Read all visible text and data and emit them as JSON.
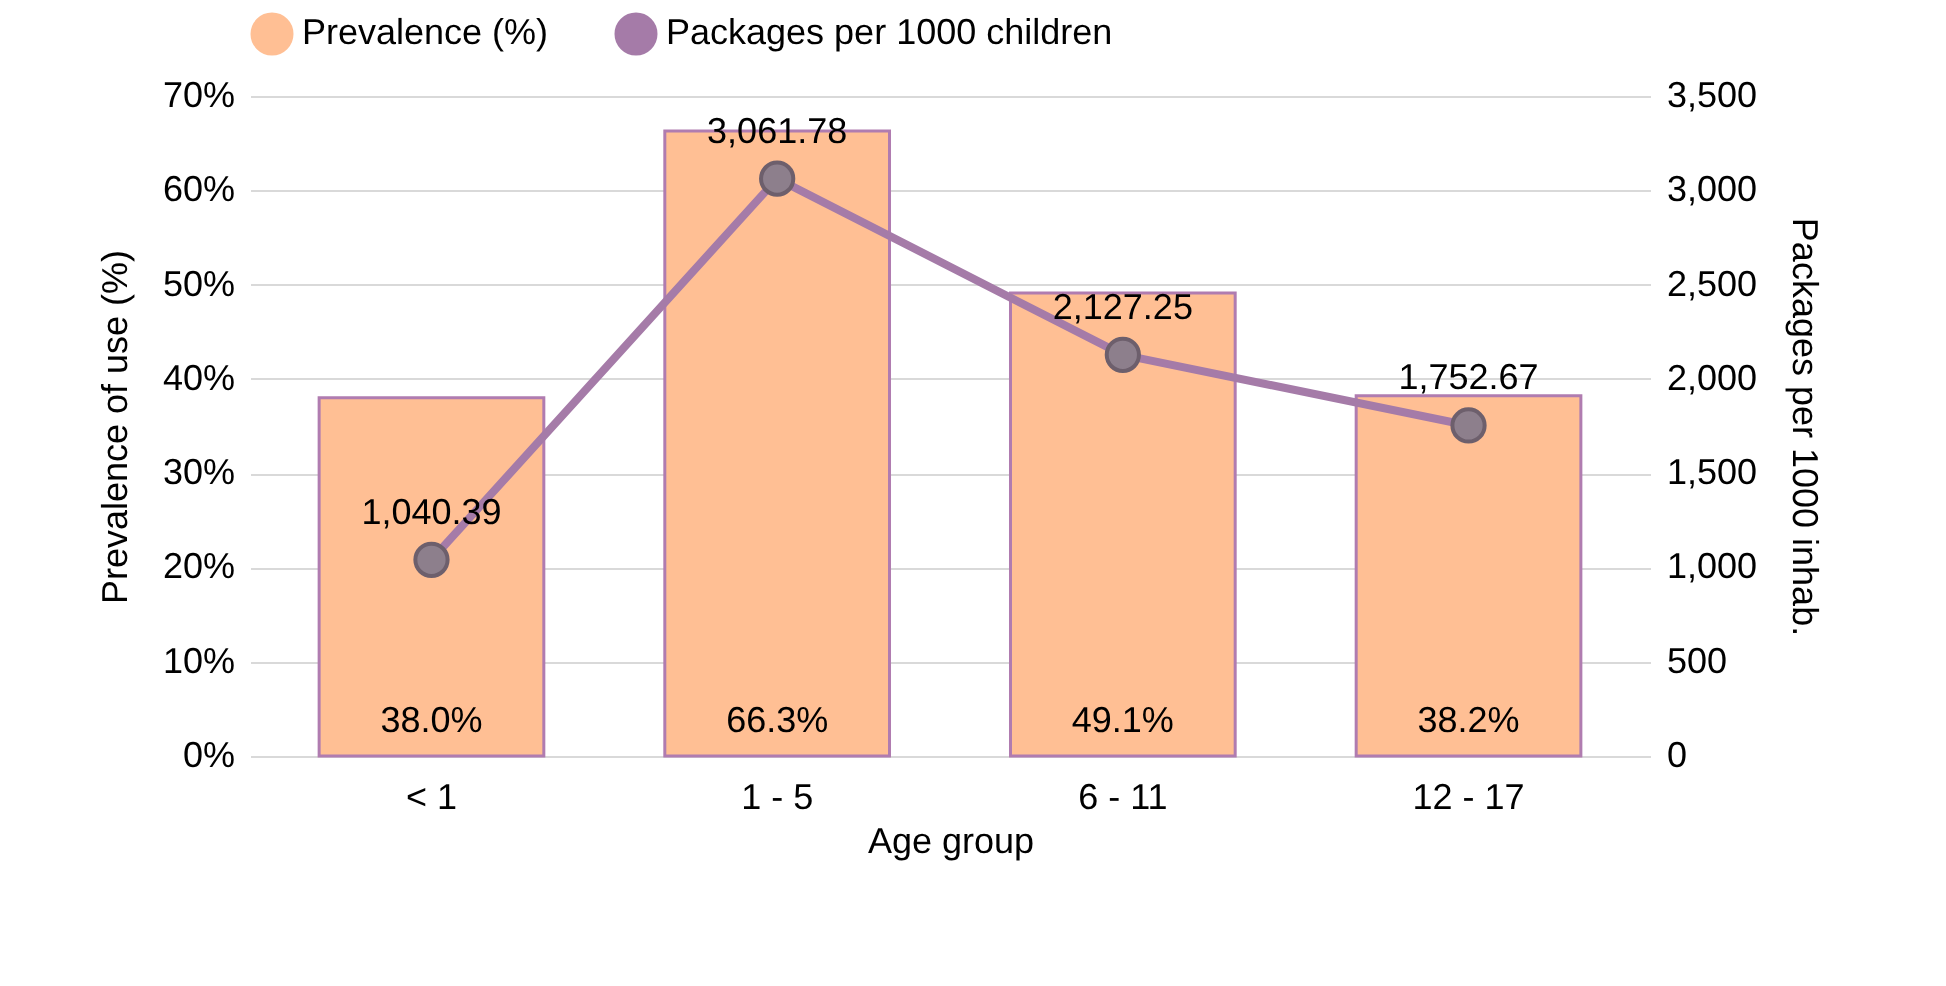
{
  "chart_data": {
    "type": "bar",
    "xlabel": "Age group",
    "ylabel": "Prevalence of use (%)",
    "y2label": "Packages per 1000 inhab.",
    "categories": [
      "< 1",
      "1 - 5",
      "6 - 11",
      "12 - 17"
    ],
    "series": [
      {
        "name": "Prevalence (%)",
        "color": "#ffbf94",
        "values": [
          38.0,
          66.3,
          49.1,
          38.2
        ],
        "value_labels": [
          "38.0%",
          "66.3%",
          "49.1%",
          "38.2%"
        ]
      },
      {
        "name": "Packages per 1000 children",
        "type": "line",
        "axis": "y2",
        "color": "#a57ba8",
        "values": [
          1040.39,
          3061.78,
          2127.25,
          1752.67
        ],
        "value_labels": [
          "1,040.39",
          "3,061.78",
          "2,127.25",
          "1,752.67"
        ]
      }
    ],
    "ylim": [
      0,
      70
    ],
    "yticks": [
      {
        "value": 0,
        "label": "0%"
      },
      {
        "value": 10,
        "label": "10%"
      },
      {
        "value": 20,
        "label": "20%"
      },
      {
        "value": 30,
        "label": "30%"
      },
      {
        "value": 40,
        "label": "40%"
      },
      {
        "value": 50,
        "label": "50%"
      },
      {
        "value": 60,
        "label": "60%"
      },
      {
        "value": 70,
        "label": "70%"
      }
    ],
    "y2lim": [
      0,
      3500
    ],
    "y2ticks": [
      0,
      {
        "value": 500,
        "label": "500"
      },
      {
        "value": 1000,
        "label": "1,000"
      },
      {
        "value": 1500,
        "label": "1,500"
      },
      {
        "value": 2000,
        "label": "2,000"
      },
      {
        "value": 2500,
        "label": "2,500"
      },
      {
        "value": 3000,
        "label": "3,000"
      },
      {
        "value": 3500,
        "label": "3,500"
      }
    ],
    "grid": "y",
    "legend": "top",
    "marker": "circle",
    "line_style": "solid"
  }
}
